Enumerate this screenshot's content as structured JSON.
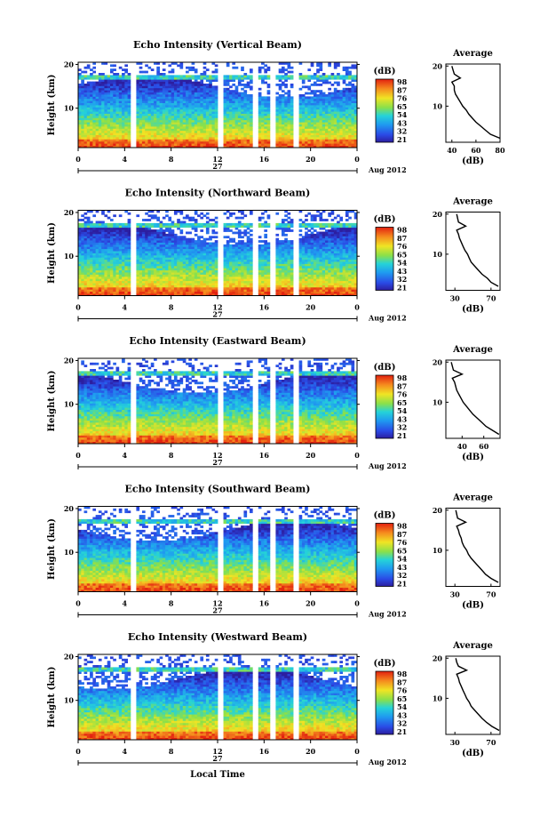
{
  "chart_data": [
    {
      "type": "heatmap",
      "title": "Echo Intensity (Vertical Beam)",
      "ylabel": "Height (km)",
      "xticks": [
        "0",
        "4",
        "8",
        "12",
        "16",
        "20",
        "0"
      ],
      "yticks": [
        "20",
        "10"
      ],
      "date_label": "27",
      "month_label": "Aug 2012",
      "colorbar": {
        "label": "(dB)",
        "ticks": [
          "98",
          "87",
          "76",
          "65",
          "54",
          "43",
          "32",
          "21"
        ],
        "range": [
          21,
          98
        ]
      },
      "gaps_hours": [
        [
          4.4,
          5.1
        ],
        [
          12.0,
          12.5
        ],
        [
          15.0,
          15.4
        ],
        [
          16.6,
          17.0
        ],
        [
          18.6,
          19.0
        ]
      ],
      "profile": {
        "title": "Average",
        "xlabel": "(dB)",
        "xticks": [
          "40",
          "60",
          "80"
        ],
        "xlim": [
          35,
          80
        ],
        "yticks": [
          "20",
          "10"
        ],
        "height_km": [
          2,
          3,
          4,
          5,
          6,
          7,
          8,
          9,
          10,
          11,
          12,
          13,
          14,
          15,
          16,
          17,
          18,
          19,
          20
        ],
        "values_db": [
          80,
          72,
          68,
          64,
          60,
          57,
          54,
          52,
          49,
          47,
          45,
          43,
          42,
          42,
          40,
          47,
          42,
          41,
          40
        ]
      }
    },
    {
      "type": "heatmap",
      "title": "Echo Intensity (Northward Beam)",
      "ylabel": "Height (km)",
      "xticks": [
        "0",
        "4",
        "8",
        "12",
        "16",
        "20",
        "0"
      ],
      "yticks": [
        "20",
        "10"
      ],
      "date_label": "27",
      "month_label": "Aug 2012",
      "colorbar": {
        "label": "(dB)",
        "ticks": [
          "98",
          "87",
          "76",
          "65",
          "54",
          "43",
          "32",
          "21"
        ],
        "range": [
          21,
          98
        ]
      },
      "gaps_hours": [
        [
          4.4,
          5.1
        ],
        [
          12.0,
          12.5
        ],
        [
          15.0,
          15.4
        ],
        [
          16.6,
          17.0
        ],
        [
          18.6,
          19.0
        ]
      ],
      "profile": {
        "title": "Average",
        "xlabel": "(dB)",
        "xticks": [
          "30",
          "70"
        ],
        "xlim": [
          20,
          80
        ],
        "yticks": [
          "20",
          "10"
        ],
        "height_km": [
          2,
          3,
          4,
          5,
          6,
          7,
          8,
          9,
          10,
          11,
          12,
          13,
          14,
          15,
          16,
          17,
          18,
          19,
          20
        ],
        "values_db": [
          78,
          70,
          66,
          60,
          56,
          52,
          48,
          46,
          44,
          41,
          39,
          37,
          35,
          34,
          32,
          42,
          34,
          33,
          32
        ]
      }
    },
    {
      "type": "heatmap",
      "title": "Echo Intensity (Eastward Beam)",
      "ylabel": "Height (km)",
      "xticks": [
        "0",
        "4",
        "8",
        "12",
        "16",
        "20",
        "0"
      ],
      "yticks": [
        "20",
        "10"
      ],
      "date_label": "27",
      "month_label": "Aug 2012",
      "colorbar": {
        "label": "(dB)",
        "ticks": [
          "98",
          "87",
          "76",
          "65",
          "54",
          "43",
          "32",
          "21"
        ],
        "range": [
          21,
          98
        ]
      },
      "gaps_hours": [
        [
          4.4,
          5.1
        ],
        [
          12.0,
          12.5
        ],
        [
          15.0,
          15.4
        ],
        [
          16.6,
          17.0
        ],
        [
          18.6,
          19.0
        ]
      ],
      "profile": {
        "title": "Average",
        "xlabel": "(dB)",
        "xticks": [
          "40",
          "60"
        ],
        "xlim": [
          25,
          75
        ],
        "yticks": [
          "20",
          "10"
        ],
        "height_km": [
          2,
          3,
          4,
          5,
          6,
          7,
          8,
          9,
          10,
          11,
          12,
          13,
          14,
          15,
          16,
          17,
          18,
          19,
          20
        ],
        "values_db": [
          74,
          68,
          62,
          58,
          54,
          50,
          47,
          44,
          41,
          39,
          37,
          35,
          34,
          33,
          31,
          40,
          32,
          31,
          30
        ]
      }
    },
    {
      "type": "heatmap",
      "title": "Echo Intensity (Southward Beam)",
      "ylabel": "Height (km)",
      "xticks": [
        "0",
        "4",
        "8",
        "12",
        "16",
        "20",
        "0"
      ],
      "yticks": [
        "20",
        "10"
      ],
      "date_label": "27",
      "month_label": "Aug 2012",
      "colorbar": {
        "label": "(dB)",
        "ticks": [
          "98",
          "87",
          "76",
          "65",
          "54",
          "43",
          "32",
          "21"
        ],
        "range": [
          21,
          98
        ]
      },
      "gaps_hours": [
        [
          4.4,
          5.1
        ],
        [
          12.0,
          12.5
        ],
        [
          15.0,
          15.4
        ],
        [
          16.6,
          17.0
        ],
        [
          18.6,
          19.0
        ]
      ],
      "profile": {
        "title": "Average",
        "xlabel": "(dB)",
        "xticks": [
          "30",
          "70"
        ],
        "xlim": [
          20,
          80
        ],
        "yticks": [
          "20",
          "10"
        ],
        "height_km": [
          2,
          3,
          4,
          5,
          6,
          7,
          8,
          9,
          10,
          11,
          12,
          13,
          14,
          15,
          16,
          17,
          18,
          19,
          20
        ],
        "values_db": [
          78,
          70,
          64,
          60,
          56,
          52,
          48,
          45,
          43,
          40,
          38,
          37,
          35,
          34,
          32,
          42,
          33,
          32,
          31
        ]
      }
    },
    {
      "type": "heatmap",
      "title": "Echo Intensity (Westward Beam)",
      "ylabel": "Height (km)",
      "xticks": [
        "0",
        "4",
        "8",
        "12",
        "16",
        "20",
        "0"
      ],
      "yticks": [
        "20",
        "10"
      ],
      "date_label": "27",
      "month_label": "Aug 2012",
      "xlabel": "Local Time",
      "colorbar": {
        "label": "(dB)",
        "ticks": [
          "98",
          "87",
          "76",
          "65",
          "54",
          "43",
          "32",
          "21"
        ],
        "range": [
          21,
          98
        ]
      },
      "gaps_hours": [
        [
          4.4,
          5.1
        ],
        [
          12.0,
          12.5
        ],
        [
          15.0,
          15.4
        ],
        [
          16.6,
          17.0
        ],
        [
          18.6,
          19.0
        ]
      ],
      "profile": {
        "title": "Average",
        "xlabel": "(dB)",
        "xticks": [
          "30",
          "70"
        ],
        "xlim": [
          20,
          80
        ],
        "yticks": [
          "20",
          "10"
        ],
        "height_km": [
          2,
          3,
          4,
          5,
          6,
          7,
          8,
          9,
          10,
          11,
          12,
          13,
          14,
          15,
          16,
          17,
          18,
          19,
          20
        ],
        "values_db": [
          79,
          71,
          65,
          60,
          56,
          52,
          48,
          46,
          43,
          41,
          39,
          37,
          35,
          34,
          32,
          43,
          34,
          32,
          31
        ]
      }
    }
  ]
}
